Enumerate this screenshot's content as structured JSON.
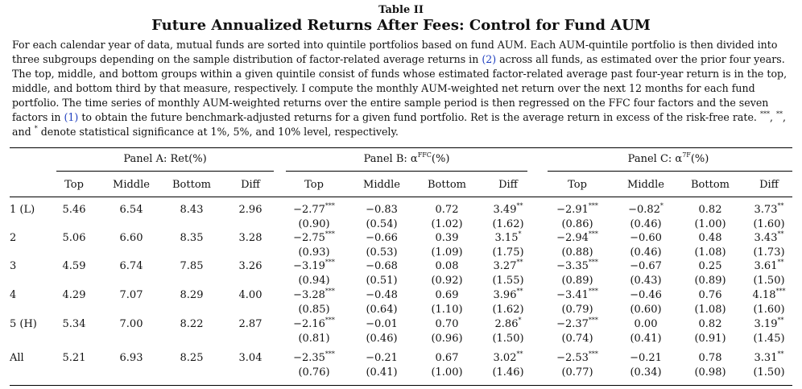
{
  "table_label": "Table II",
  "title": "Future Annualized Returns After Fees: Control for Fund AUM",
  "caption": {
    "p1": "For each calendar year of data, mutual funds are sorted into quintile portfolios based on fund AUM. Each AUM-quintile portfolio is then divided into three subgroups depending on the sample distribution of factor-related average returns in ",
    "ref1": "(2)",
    "p2": " across all funds, as estimated over the prior four years. The top, middle, and bottom groups within a given quintile consist of funds whose estimated factor-related average past four-year return is in the top, middle, and bottom third by that measure, respectively. I compute the monthly AUM-weighted net return over the next 12 months for each fund portfolio. The time series of monthly AUM-weighted returns over the entire sample period is then regressed on the FFC four factors and the seven factors in ",
    "ref2": "(1)",
    "p3": " to obtain the future benchmark-adjusted returns for a given fund portfolio. Ret is the average return in excess of the risk-free rate. ",
    "stars": "***",
    "p4": ", ",
    "stars2": "**",
    "p5": ", and ",
    "stars3": "*",
    "p6": " denote statistical significance at 1%, 5%, and 10% level, respectively."
  },
  "panels": {
    "a": "Panel A: Ret(%)",
    "b_pre": "Panel B: α",
    "b_sup": "FFC",
    "b_post": "(%)",
    "c_pre": "Panel C: α",
    "c_sup": "7F",
    "c_post": "(%)"
  },
  "headers": [
    "Top",
    "Middle",
    "Bottom",
    "Diff",
    "Top",
    "Middle",
    "Bottom",
    "Diff",
    "Top",
    "Middle",
    "Bottom",
    "Diff"
  ],
  "rows": [
    {
      "label": "1 (L)",
      "values": [
        "5.46",
        "6.54",
        "8.43",
        "2.96",
        "−2.77",
        "−0.83",
        "0.72",
        "3.49",
        "−2.91",
        "−0.82",
        "0.82",
        "3.73"
      ],
      "stars": [
        "",
        "",
        "",
        "",
        "***",
        "",
        "",
        "**",
        "***",
        "*",
        "",
        "**"
      ],
      "se": [
        "",
        "",
        "",
        "",
        "(0.90)",
        "(0.54)",
        "(1.02)",
        "(1.62)",
        "(0.86)",
        "(0.46)",
        "(1.00)",
        "(1.60)"
      ]
    },
    {
      "label": "2",
      "values": [
        "5.06",
        "6.60",
        "8.35",
        "3.28",
        "−2.75",
        "−0.66",
        "0.39",
        "3.15",
        "−2.94",
        "−0.60",
        "0.48",
        "3.43"
      ],
      "stars": [
        "",
        "",
        "",
        "",
        "***",
        "",
        "",
        "*",
        "***",
        "",
        "",
        "**"
      ],
      "se": [
        "",
        "",
        "",
        "",
        "(0.93)",
        "(0.53)",
        "(1.09)",
        "(1.75)",
        "(0.88)",
        "(0.46)",
        "(1.08)",
        "(1.73)"
      ]
    },
    {
      "label": "3",
      "values": [
        "4.59",
        "6.74",
        "7.85",
        "3.26",
        "−3.19",
        "−0.68",
        "0.08",
        "3.27",
        "−3.35",
        "−0.67",
        "0.25",
        "3.61"
      ],
      "stars": [
        "",
        "",
        "",
        "",
        "***",
        "",
        "",
        "**",
        "***",
        "",
        "",
        "**"
      ],
      "se": [
        "",
        "",
        "",
        "",
        "(0.94)",
        "(0.51)",
        "(0.92)",
        "(1.55)",
        "(0.89)",
        "(0.43)",
        "(0.89)",
        "(1.50)"
      ]
    },
    {
      "label": "4",
      "values": [
        "4.29",
        "7.07",
        "8.29",
        "4.00",
        "−3.28",
        "−0.48",
        "0.69",
        "3.96",
        "−3.41",
        "−0.46",
        "0.76",
        "4.18"
      ],
      "stars": [
        "",
        "",
        "",
        "",
        "***",
        "",
        "",
        "**",
        "***",
        "",
        "",
        "***"
      ],
      "se": [
        "",
        "",
        "",
        "",
        "(0.85)",
        "(0.64)",
        "(1.10)",
        "(1.62)",
        "(0.79)",
        "(0.60)",
        "(1.08)",
        "(1.60)"
      ]
    },
    {
      "label": "5 (H)",
      "values": [
        "5.34",
        "7.00",
        "8.22",
        "2.87",
        "−2.16",
        "−0.01",
        "0.70",
        "2.86",
        "−2.37",
        "0.00",
        "0.82",
        "3.19"
      ],
      "stars": [
        "",
        "",
        "",
        "",
        "***",
        "",
        "",
        "*",
        "***",
        "",
        "",
        "**"
      ],
      "se": [
        "",
        "",
        "",
        "",
        "(0.81)",
        "(0.46)",
        "(0.96)",
        "(1.50)",
        "(0.74)",
        "(0.41)",
        "(0.91)",
        "(1.45)"
      ]
    },
    {
      "label": "All",
      "values": [
        "5.21",
        "6.93",
        "8.25",
        "3.04",
        "−2.35",
        "−0.21",
        "0.67",
        "3.02",
        "−2.53",
        "−0.21",
        "0.78",
        "3.31"
      ],
      "stars": [
        "",
        "",
        "",
        "",
        "***",
        "",
        "",
        "**",
        "***",
        "",
        "",
        "**"
      ],
      "se": [
        "",
        "",
        "",
        "",
        "(0.76)",
        "(0.41)",
        "(1.00)",
        "(1.46)",
        "(0.77)",
        "(0.34)",
        "(0.98)",
        "(1.50)"
      ]
    }
  ]
}
